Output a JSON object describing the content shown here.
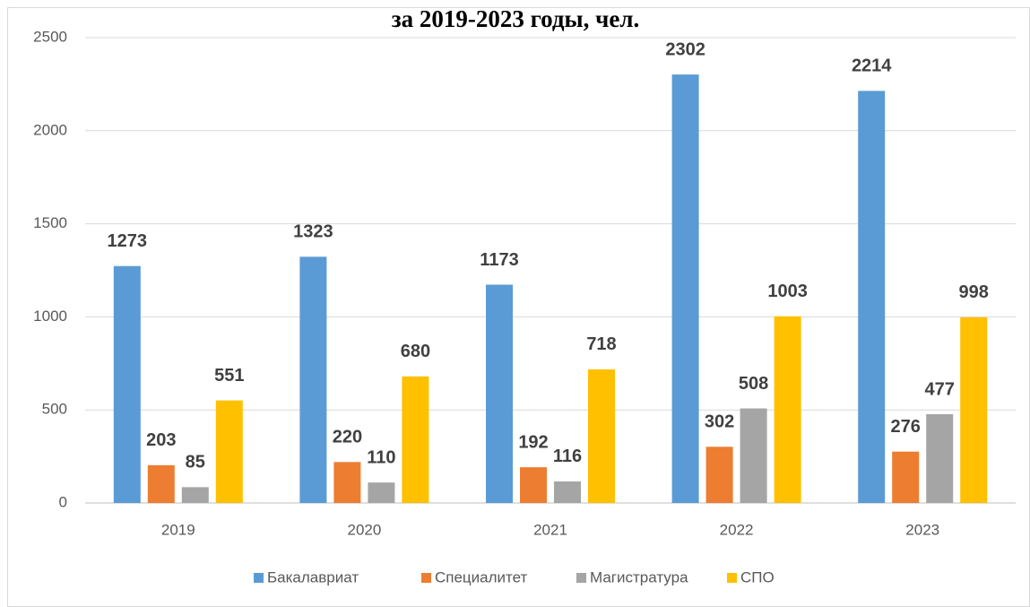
{
  "chart_data": {
    "type": "bar",
    "title": "за 2019-2023 годы, чел.",
    "categories": [
      "2019",
      "2020",
      "2021",
      "2022",
      "2023"
    ],
    "series": [
      {
        "name": "Бакалавриат",
        "color": "#5b9bd5",
        "values": [
          1273,
          1323,
          1173,
          2302,
          2214
        ]
      },
      {
        "name": "Специалитет",
        "color": "#ed7d31",
        "values": [
          203,
          220,
          192,
          302,
          276
        ]
      },
      {
        "name": "Магистратура",
        "color": "#a5a5a5",
        "values": [
          85,
          110,
          116,
          508,
          477
        ]
      },
      {
        "name": "СПО",
        "color": "#ffc000",
        "values": [
          551,
          680,
          718,
          1003,
          998
        ]
      }
    ],
    "ylim": [
      0,
      2500
    ],
    "yticks": [
      0,
      500,
      1000,
      1500,
      2000,
      2500
    ],
    "grid": true,
    "legend": "bottom"
  }
}
